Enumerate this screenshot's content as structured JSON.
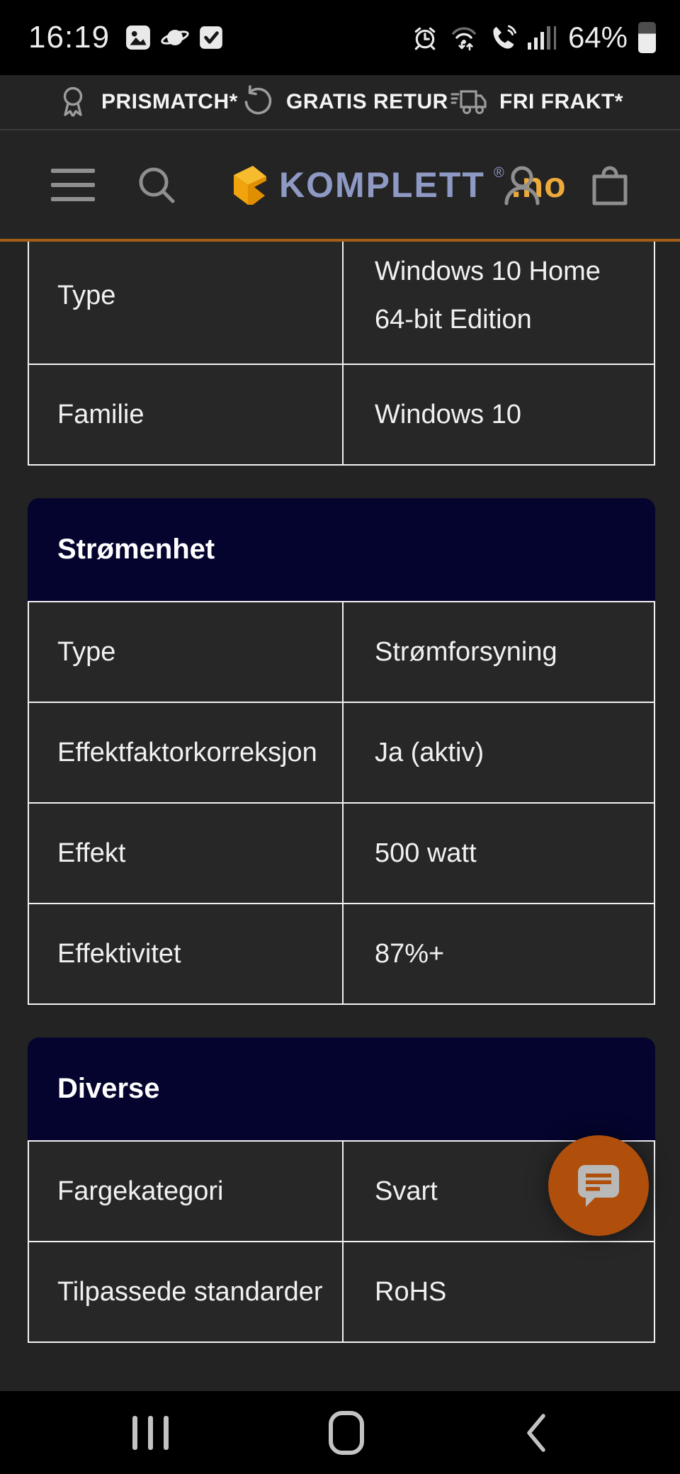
{
  "status_bar": {
    "time": "16:19",
    "battery_percent": "64%",
    "notification_icons": [
      "gallery-icon",
      "browser-planet-icon",
      "check-icon"
    ],
    "system_icons": [
      "alarm-icon",
      "wifi-updown-icon",
      "wifi-call-icon",
      "signal-bars-icon",
      "battery-icon"
    ]
  },
  "promo_bar": {
    "items": [
      {
        "icon": "award-ribbon-icon",
        "label": "PRISMATCH*"
      },
      {
        "icon": "return-arrow-icon",
        "label": "GRATIS RETUR"
      },
      {
        "icon": "truck-icon",
        "label": "FRI FRAKT*"
      }
    ]
  },
  "header": {
    "logo": {
      "brand": "KOMPLETT",
      "registered_mark": "®",
      "tld": ".no"
    },
    "icons": [
      "menu-icon",
      "search-icon",
      "profile-icon",
      "shopping-bag-icon"
    ]
  },
  "spec_sections": [
    {
      "title": "",
      "clipped_top": true,
      "rows": [
        {
          "label": "Type",
          "value": "Windows 10 Home 64-bit Edition"
        },
        {
          "label": "Familie",
          "value": "Windows 10"
        }
      ]
    },
    {
      "title": "Strømenhet",
      "rows": [
        {
          "label": "Type",
          "value": "Strømforsyning"
        },
        {
          "label": "Effektfaktorkorreksjon",
          "value": "Ja (aktiv)"
        },
        {
          "label": "Effekt",
          "value": "500 watt"
        },
        {
          "label": "Effektivitet",
          "value": "87%+"
        }
      ]
    },
    {
      "title": "Diverse",
      "rows": [
        {
          "label": "Fargekategori",
          "value": "Svart"
        },
        {
          "label": "Tilpassede standarder",
          "value": "RoHS"
        }
      ]
    }
  ],
  "chat_button": {
    "icon": "chat-bubble-icon"
  },
  "nav_bar": {
    "icons": [
      "recents-icon",
      "home-icon",
      "back-icon"
    ]
  },
  "colors": {
    "accent_orange": "#a35f17",
    "section_navy": "#04042e",
    "fab_orange": "#b04e0c",
    "logo_blue": "#8e99c4",
    "logo_amber": "#edaa3a",
    "border_white": "#f2f2f2"
  }
}
